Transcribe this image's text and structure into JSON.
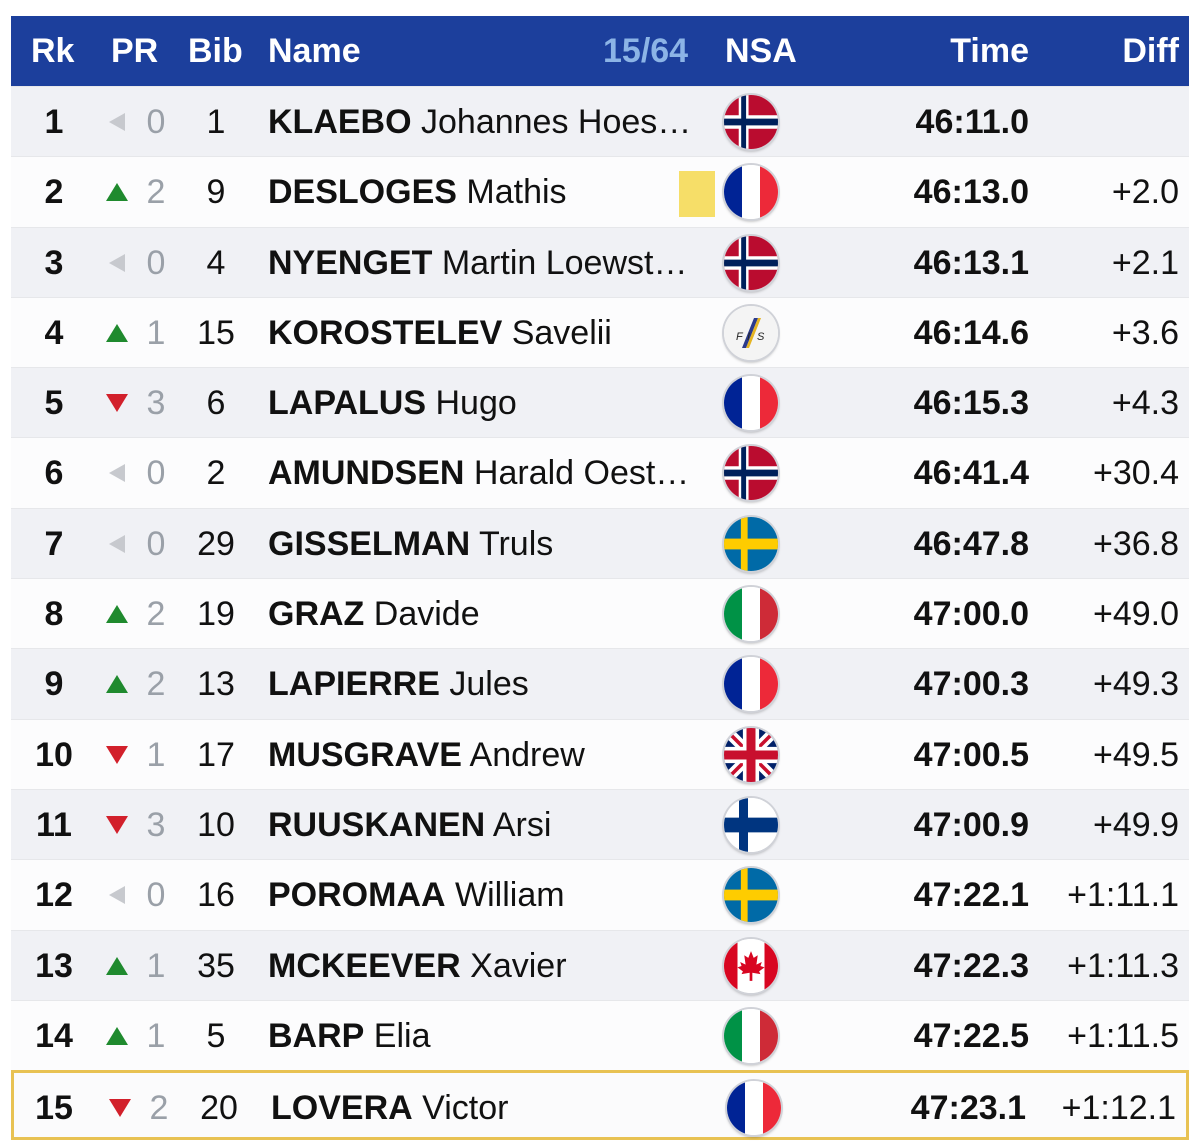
{
  "header": {
    "rk": "Rk",
    "pr": "PR",
    "bib": "Bib",
    "name": "Name",
    "count": "15/64",
    "nsa": "NSA",
    "time": "Time",
    "diff": "Diff"
  },
  "colors": {
    "header_bg": "#1c3f9c",
    "count_text": "#8cb4e6",
    "up": "#1f8a2e",
    "down": "#d2202b",
    "same": "#c7c9ce",
    "highlight_border": "#e8c253",
    "leader_bib": "#f6de68"
  },
  "rows": [
    {
      "rank": "1",
      "trend": "same",
      "pr": "0",
      "bib": "1",
      "last": "KLAEBO",
      "first": "Johannes Hoes…",
      "nsa": "NOR",
      "time": "46:11.0",
      "diff": ""
    },
    {
      "rank": "2",
      "trend": "up",
      "pr": "2",
      "bib": "9",
      "last": "DESLOGES",
      "first": "Mathis",
      "nsa": "FRA",
      "time": "46:13.0",
      "diff": "+2.0",
      "yellow": true
    },
    {
      "rank": "3",
      "trend": "same",
      "pr": "0",
      "bib": "4",
      "last": "NYENGET",
      "first": "Martin Loewst…",
      "nsa": "NOR",
      "time": "46:13.1",
      "diff": "+2.1"
    },
    {
      "rank": "4",
      "trend": "up",
      "pr": "1",
      "bib": "15",
      "last": "KOROSTELEV",
      "first": "Savelii",
      "nsa": "FIS",
      "time": "46:14.6",
      "diff": "+3.6"
    },
    {
      "rank": "5",
      "trend": "down",
      "pr": "3",
      "bib": "6",
      "last": "LAPALUS",
      "first": "Hugo",
      "nsa": "FRA",
      "time": "46:15.3",
      "diff": "+4.3"
    },
    {
      "rank": "6",
      "trend": "same",
      "pr": "0",
      "bib": "2",
      "last": "AMUNDSEN",
      "first": "Harald Oest…",
      "nsa": "NOR",
      "time": "46:41.4",
      "diff": "+30.4"
    },
    {
      "rank": "7",
      "trend": "same",
      "pr": "0",
      "bib": "29",
      "last": "GISSELMAN",
      "first": "Truls",
      "nsa": "SWE",
      "time": "46:47.8",
      "diff": "+36.8"
    },
    {
      "rank": "8",
      "trend": "up",
      "pr": "2",
      "bib": "19",
      "last": "GRAZ",
      "first": "Davide",
      "nsa": "ITA",
      "time": "47:00.0",
      "diff": "+49.0"
    },
    {
      "rank": "9",
      "trend": "up",
      "pr": "2",
      "bib": "13",
      "last": "LAPIERRE",
      "first": "Jules",
      "nsa": "FRA",
      "time": "47:00.3",
      "diff": "+49.3"
    },
    {
      "rank": "10",
      "trend": "down",
      "pr": "1",
      "bib": "17",
      "last": "MUSGRAVE",
      "first": "Andrew",
      "nsa": "GBR",
      "time": "47:00.5",
      "diff": "+49.5"
    },
    {
      "rank": "11",
      "trend": "down",
      "pr": "3",
      "bib": "10",
      "last": "RUUSKANEN",
      "first": "Arsi",
      "nsa": "FIN",
      "time": "47:00.9",
      "diff": "+49.9"
    },
    {
      "rank": "12",
      "trend": "same",
      "pr": "0",
      "bib": "16",
      "last": "POROMAA",
      "first": "William",
      "nsa": "SWE",
      "time": "47:22.1",
      "diff": "+1:11.1"
    },
    {
      "rank": "13",
      "trend": "up",
      "pr": "1",
      "bib": "35",
      "last": "MCKEEVER",
      "first": "Xavier",
      "nsa": "CAN",
      "time": "47:22.3",
      "diff": "+1:11.3"
    },
    {
      "rank": "14",
      "trend": "up",
      "pr": "1",
      "bib": "5",
      "last": "BARP",
      "first": "Elia",
      "nsa": "ITA",
      "time": "47:22.5",
      "diff": "+1:11.5"
    },
    {
      "rank": "15",
      "trend": "down",
      "pr": "2",
      "bib": "20",
      "last": "LOVERA",
      "first": "Victor",
      "nsa": "FRA",
      "time": "47:23.1",
      "diff": "+1:12.1",
      "highlight": true
    }
  ]
}
